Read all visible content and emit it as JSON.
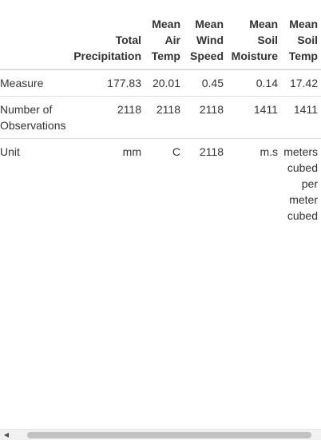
{
  "table": {
    "columns": [
      "",
      "Total Precipitation",
      "Mean Air Temp",
      "Mean Wind Speed",
      "Mean Soil Moisture",
      "Mean Soil Temp"
    ],
    "rows": [
      [
        "Measure",
        "177.83",
        "20.01",
        "0.45",
        "0.14",
        "17.42"
      ],
      [
        "Number of Observations",
        "2118",
        "2118",
        "2118",
        "1411",
        "1411"
      ],
      [
        "Unit",
        "mm",
        "C",
        "2118",
        "m.s",
        "meters cubed per meter cubed"
      ]
    ]
  },
  "scrollbar": {
    "left_arrow_icon": "triangle-left",
    "horizontal_scroll_fraction": 0.0
  }
}
